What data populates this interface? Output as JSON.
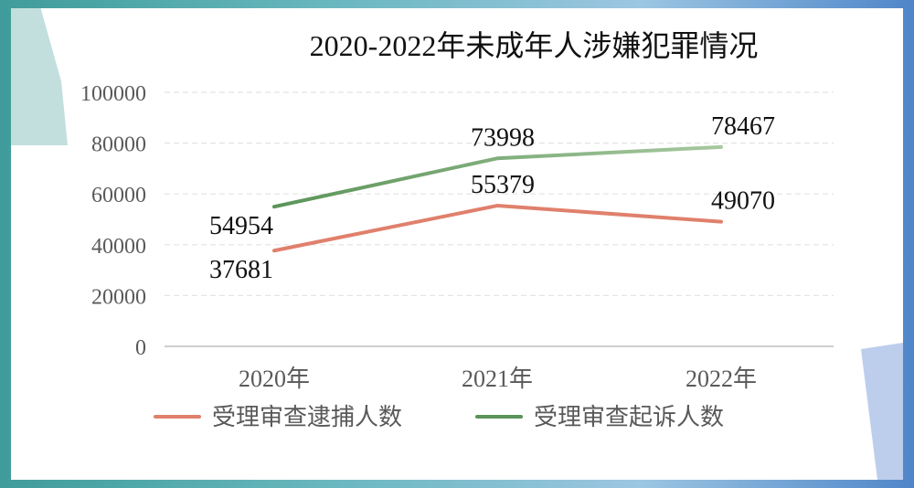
{
  "chart_data": {
    "type": "line",
    "title": "2020-2022年未成年人涉嫌犯罪情况",
    "categories": [
      "2020年",
      "2021年",
      "2022年"
    ],
    "ylim": [
      0,
      100000
    ],
    "yticks": [
      "0",
      "20000",
      "40000",
      "60000",
      "80000",
      "100000"
    ],
    "grid": true,
    "legend_position": "bottom",
    "series": [
      {
        "name": "受理审查逮捕人数",
        "values": [
          37681,
          55379,
          49070
        ],
        "color": "#e0806c"
      },
      {
        "name": "受理审查起诉人数",
        "values": [
          54954,
          73998,
          78467
        ],
        "colors": [
          "#5a9458",
          "#a7c8a0"
        ]
      }
    ]
  },
  "colors": {
    "background_left": "#3f9c9a",
    "background_right": "#4f86c9",
    "decor_left": "#b7d9d8",
    "decor_right": "#b6c9ea",
    "gridline": "#e4e4e4",
    "axis": "#bfbfbf"
  }
}
